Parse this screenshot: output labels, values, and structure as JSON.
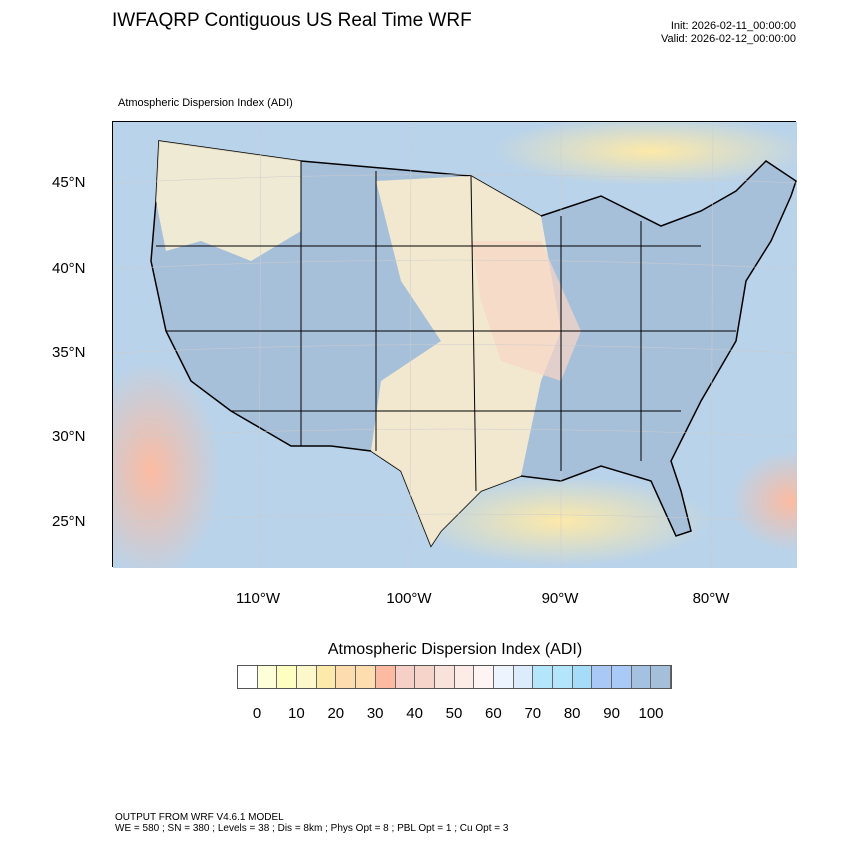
{
  "header": {
    "title": "IWFAQRP Contiguous US Real Time WRF",
    "init": "Init: 2026-02-11_00:00:00",
    "valid": "Valid: 2026-02-12_00:00:00"
  },
  "map": {
    "subtitle": "Atmospheric Dispersion Index   (ADI)",
    "lat_labels": [
      "45°N",
      "40°N",
      "35°N",
      "30°N",
      "25°N"
    ],
    "lon_labels": [
      "110°W",
      "100°W",
      "90°W",
      "80°W"
    ]
  },
  "colorbar": {
    "title": "Atmospheric Dispersion Index  (ADI)",
    "labels": [
      "0",
      "10",
      "20",
      "30",
      "40",
      "50",
      "60",
      "70",
      "80",
      "90",
      "100"
    ],
    "colors": [
      "#ffffff",
      "#fefed9",
      "#fefec0",
      "#fcf8cc",
      "#fde9a9",
      "#fddcad",
      "#fddcad",
      "#fcbba1",
      "#f6d0c6",
      "#f6d4ca",
      "#f9e2d9",
      "#fcebe6",
      "#fff4f4",
      "#eef4fd",
      "#dcecfc",
      "#b3e5fb",
      "#b3e5fb",
      "#a5dcf7",
      "#a9c8f5",
      "#a9caf6",
      "#a5c1e1",
      "#a4bfd9"
    ]
  },
  "footer": {
    "line1": "OUTPUT FROM WRF V4.6.1 MODEL",
    "line2": "WE = 580 ; SN = 380 ; Levels = 38 ; Dis = 8km ; Phys Opt = 8 ; PBL Opt = 1 ; Cu Opt = 3"
  }
}
